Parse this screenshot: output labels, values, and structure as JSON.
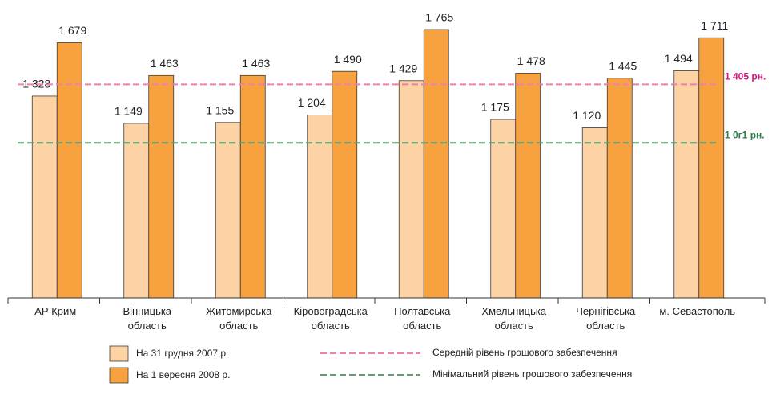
{
  "chart_data": {
    "type": "bar",
    "categories": [
      "АР Крим",
      "Вінницька область",
      "Житомирська область",
      "Кіровоградська область",
      "Полтавська область",
      "Хмельницька область",
      "Чернігівська область",
      "м. Севастополь"
    ],
    "series": [
      {
        "name": "На 31 грудня 2007 р.",
        "color": "#fdd3a5",
        "values": [
          1328,
          1149,
          1155,
          1204,
          1429,
          1175,
          1120,
          1494
        ],
        "value_labels": [
          "1 328",
          "1 149",
          "1 155",
          "1 204",
          "1 429",
          "1 175",
          "1 120",
          "1 494"
        ]
      },
      {
        "name": "На 1 вересня 2008 р.",
        "color": "#f8a23f",
        "values": [
          1679,
          1463,
          1463,
          1490,
          1765,
          1478,
          1445,
          1711
        ],
        "value_labels": [
          "1 679",
          "1 463",
          "1 463",
          "1 490",
          "1 765",
          "1 478",
          "1 445",
          "1 711"
        ]
      }
    ],
    "reference_lines": [
      {
        "name": "Середній рівень грошового забезпечення",
        "value": 1405,
        "label": "1 405  рн.",
        "color": "#ee7fb0",
        "label_color": "#d2187c"
      },
      {
        "name": "Мінімальний рівень грошового забезпечення",
        "value": 1021,
        "label": "1 0г1  рн.",
        "color": "#5e9f72",
        "label_color": "#2b7d4c"
      }
    ],
    "ylim": [
      0,
      1960
    ]
  }
}
